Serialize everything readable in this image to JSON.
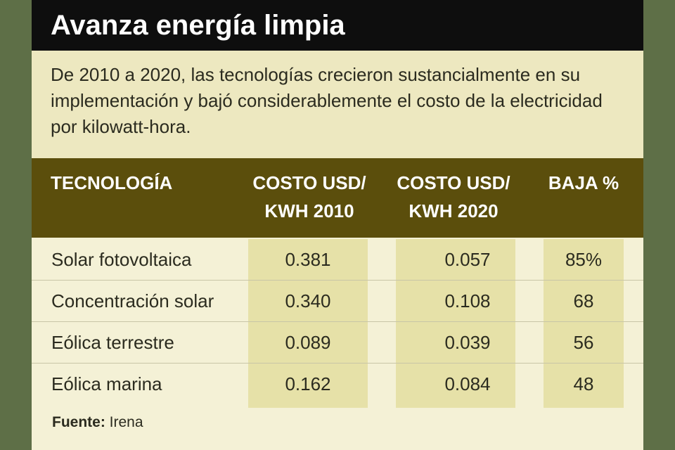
{
  "header": {
    "title": "Avanza energía limpia"
  },
  "intro": "De 2010 a 2020, las tecnologías crecieron sustancialmente en su implementación y bajó considerablemente el costo de la electricidad por kilowatt-hora.",
  "table": {
    "columns": [
      [
        "TECNOLOGÍA"
      ],
      [
        "COSTO USD/",
        "KWH 2010"
      ],
      [
        "COSTO USD/",
        "KWH 2020"
      ],
      [
        "BAJA %"
      ]
    ],
    "rows": [
      [
        "Solar fotovoltaica",
        "0.381",
        "0.057",
        "85%"
      ],
      [
        "Concentración solar",
        "0.340",
        "0.108",
        "68"
      ],
      [
        "Eólica terrestre",
        "0.089",
        "0.039",
        "56"
      ],
      [
        "Eólica marina",
        "0.162",
        "0.084",
        "48"
      ]
    ]
  },
  "source": {
    "label": "Fuente:",
    "text": "Irena"
  }
}
